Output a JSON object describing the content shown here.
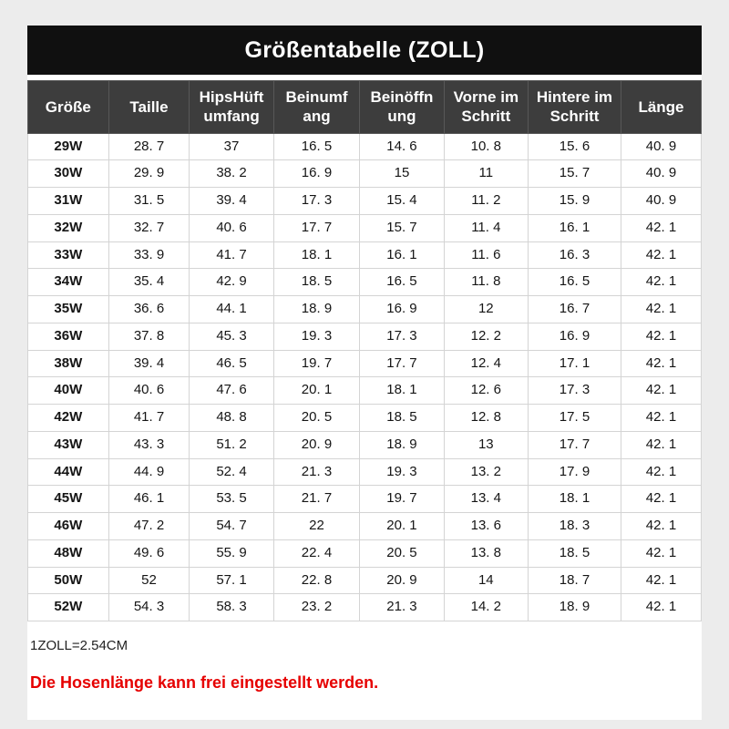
{
  "page": {
    "title": "Größentabelle (ZOLL)",
    "unit_note": "1ZOLL=2.54CM",
    "length_note": "Die Hosenlänge kann frei eingestellt werden.",
    "colors": {
      "title_bar_bg": "#101010",
      "table_header_bg": "#3d3d3d",
      "note_red": "#e60000"
    }
  },
  "chart_data": {
    "type": "table",
    "title": "Größentabelle (ZOLL)",
    "columns": [
      "Größe",
      "Taille",
      "HipsHüft\numfang",
      "Beinumf\nang",
      "Beinöffn\nung",
      "Vorne im\nSchritt",
      "Hintere im\nSchritt",
      "Länge"
    ],
    "rows": [
      [
        "29W",
        "28. 7",
        "37",
        "16. 5",
        "14. 6",
        "10. 8",
        "15. 6",
        "40. 9"
      ],
      [
        "30W",
        "29. 9",
        "38. 2",
        "16. 9",
        "15",
        "11",
        "15. 7",
        "40. 9"
      ],
      [
        "31W",
        "31. 5",
        "39. 4",
        "17. 3",
        "15. 4",
        "11. 2",
        "15. 9",
        "40. 9"
      ],
      [
        "32W",
        "32. 7",
        "40. 6",
        "17. 7",
        "15. 7",
        "11. 4",
        "16. 1",
        "42. 1"
      ],
      [
        "33W",
        "33. 9",
        "41. 7",
        "18. 1",
        "16. 1",
        "11. 6",
        "16. 3",
        "42. 1"
      ],
      [
        "34W",
        "35. 4",
        "42. 9",
        "18. 5",
        "16. 5",
        "11. 8",
        "16. 5",
        "42. 1"
      ],
      [
        "35W",
        "36. 6",
        "44. 1",
        "18. 9",
        "16. 9",
        "12",
        "16. 7",
        "42. 1"
      ],
      [
        "36W",
        "37. 8",
        "45. 3",
        "19. 3",
        "17. 3",
        "12. 2",
        "16. 9",
        "42. 1"
      ],
      [
        "38W",
        "39. 4",
        "46. 5",
        "19. 7",
        "17. 7",
        "12. 4",
        "17. 1",
        "42. 1"
      ],
      [
        "40W",
        "40. 6",
        "47. 6",
        "20. 1",
        "18. 1",
        "12. 6",
        "17. 3",
        "42. 1"
      ],
      [
        "42W",
        "41. 7",
        "48. 8",
        "20. 5",
        "18. 5",
        "12. 8",
        "17. 5",
        "42. 1"
      ],
      [
        "43W",
        "43. 3",
        "51. 2",
        "20. 9",
        "18. 9",
        "13",
        "17. 7",
        "42. 1"
      ],
      [
        "44W",
        "44. 9",
        "52. 4",
        "21. 3",
        "19. 3",
        "13. 2",
        "17. 9",
        "42. 1"
      ],
      [
        "45W",
        "46. 1",
        "53. 5",
        "21. 7",
        "19. 7",
        "13. 4",
        "18. 1",
        "42. 1"
      ],
      [
        "46W",
        "47. 2",
        "54. 7",
        "22",
        "20. 1",
        "13. 6",
        "18. 3",
        "42. 1"
      ],
      [
        "48W",
        "49. 6",
        "55. 9",
        "22. 4",
        "20. 5",
        "13. 8",
        "18. 5",
        "42. 1"
      ],
      [
        "50W",
        "52",
        "57. 1",
        "22. 8",
        "20. 9",
        "14",
        "18. 7",
        "42. 1"
      ],
      [
        "52W",
        "54. 3",
        "58. 3",
        "23. 2",
        "21. 3",
        "14. 2",
        "18. 9",
        "42. 1"
      ]
    ]
  }
}
